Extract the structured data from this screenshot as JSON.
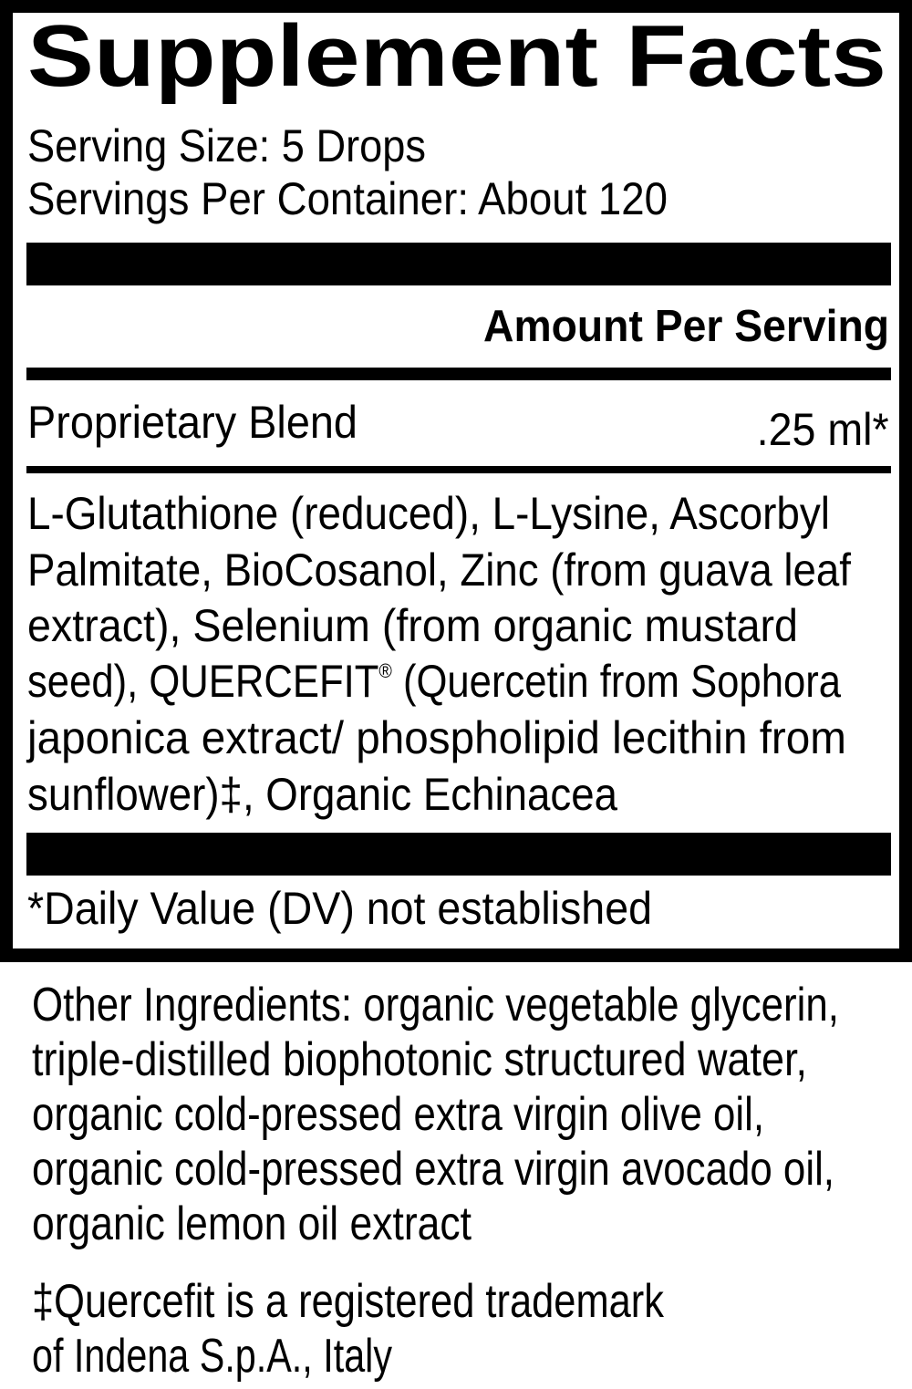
{
  "label": {
    "title": "Supplement Facts",
    "serving_size": "Serving Size: 5 Drops",
    "servings_per_container": "Servings Per Container: About 120",
    "amount_header": "Amount Per Serving",
    "blend": {
      "name": "Proprietary Blend",
      "amount": ".25 ml*"
    },
    "blend_ingredients_lines": [
      "L-Glutathione (reduced), L-Lysine, Ascorbyl",
      "Palmitate, BioCosanol, Zinc (from guava leaf",
      "extract), Selenium (from organic mustard",
      "seed), QUERCEFIT® (Quercetin from Sophora",
      "japonica extract/ phospholipid lecithin from",
      "sunflower)‡, Organic Echinacea"
    ],
    "daily_value_note": "*Daily Value (DV) not established"
  },
  "other_ingredients_lines": [
    "Other Ingredients: organic vegetable glycerin,",
    "triple-distilled biophotonic structured water,",
    "organic cold-pressed extra virgin olive oil,",
    "organic cold-pressed extra virgin avocado oil,",
    "organic lemon oil extract"
  ],
  "trademark_note_lines": [
    "‡Quercefit is a registered trademark",
    "of Indena S.p.A., Italy"
  ]
}
